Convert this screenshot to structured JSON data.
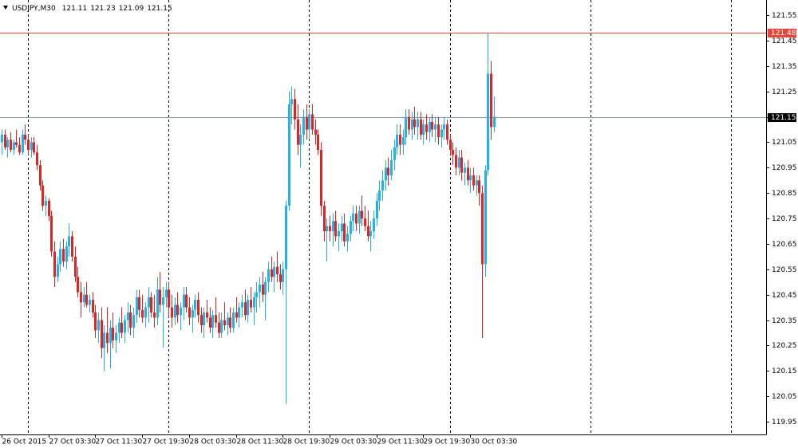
{
  "chart_data": {
    "type": "candlestick",
    "title": "USDJPY,M30",
    "last_bar": [
      121.11,
      121.23,
      121.09,
      121.15
    ],
    "up_color": "#1eb4ea",
    "down_color": "#e52222",
    "categories": [
      "26 Oct 2015",
      null,
      null,
      null,
      null,
      null,
      null,
      null,
      null,
      null,
      null,
      null,
      null,
      null,
      null,
      null,
      "27 Oct 03:30",
      null,
      null,
      null,
      null,
      null,
      null,
      null,
      null,
      null,
      null,
      null,
      null,
      null,
      null,
      null,
      "27 Oct 11:30",
      null,
      null,
      null,
      null,
      null,
      null,
      null,
      null,
      null,
      null,
      null,
      null,
      null,
      null,
      null,
      "27 Oct 19:30",
      null,
      null,
      null,
      null,
      null,
      null,
      null,
      null,
      null,
      null,
      null,
      null,
      null,
      null,
      null,
      "28 Oct 03:30",
      null,
      null,
      null,
      null,
      null,
      null,
      null,
      null,
      null,
      null,
      null,
      null,
      null,
      null,
      null,
      "28 Oct 11:30",
      null,
      null,
      null,
      null,
      null,
      null,
      null,
      null,
      null,
      null,
      null,
      null,
      null,
      null,
      null,
      "28 Oct 19:30",
      null,
      null,
      null,
      null,
      null,
      null,
      null,
      null,
      null,
      null,
      null,
      null,
      null,
      null,
      null,
      "29 Oct 03:30",
      null,
      null,
      null,
      null,
      null,
      null,
      null,
      null,
      null,
      null,
      null,
      null,
      null,
      null,
      null,
      "29 Oct 11:30",
      null,
      null,
      null,
      null,
      null,
      null,
      null,
      null,
      null,
      null,
      null,
      null,
      null,
      null,
      null,
      "29 Oct 19:30",
      null,
      null,
      null,
      null,
      null,
      null,
      null,
      null,
      null,
      null,
      null,
      null,
      null,
      null,
      null,
      "30 Oct 03:30",
      null,
      null,
      null,
      null,
      null,
      null,
      null,
      null
    ],
    "open": [
      121.05,
      121.08,
      121.03,
      121.06,
      121.02,
      121.05,
      121.04,
      121.01,
      121.08,
      121.06,
      121.02,
      121.05,
      121.01,
      120.96,
      120.88,
      120.8,
      120.82,
      120.76,
      120.62,
      120.52,
      120.57,
      120.63,
      120.58,
      120.64,
      120.68,
      120.6,
      120.52,
      120.46,
      120.42,
      120.45,
      120.41,
      120.43,
      120.38,
      120.31,
      120.35,
      120.24,
      120.3,
      120.26,
      120.32,
      120.27,
      120.3,
      120.34,
      120.3,
      120.35,
      120.38,
      120.32,
      120.37,
      120.44,
      120.39,
      120.36,
      120.4,
      120.44,
      120.38,
      120.36,
      120.47,
      120.41,
      120.44,
      120.47,
      120.4,
      120.36,
      120.41,
      120.37,
      120.4,
      120.45,
      120.4,
      120.36,
      120.39,
      120.43,
      120.37,
      120.33,
      120.38,
      120.36,
      120.32,
      120.37,
      120.34,
      120.3,
      120.35,
      120.33,
      120.36,
      120.32,
      120.38,
      120.36,
      120.4,
      120.42,
      120.37,
      120.43,
      120.4,
      120.44,
      120.46,
      120.49,
      120.45,
      120.5,
      120.55,
      120.52,
      120.56,
      120.53,
      120.5,
      120.55,
      120.8,
      121.2,
      121.22,
      121.14,
      121.04,
      121.08,
      121.15,
      121.1,
      121.16,
      121.1,
      121.08,
      121.02,
      120.8,
      120.7,
      120.72,
      120.7,
      120.74,
      120.68,
      120.7,
      120.73,
      120.66,
      120.69,
      120.74,
      120.77,
      120.73,
      120.78,
      120.75,
      120.72,
      120.68,
      120.7,
      120.75,
      120.82,
      120.86,
      120.9,
      120.95,
      120.92,
      120.98,
      121.03,
      121.08,
      121.04,
      121.07,
      121.15,
      121.1,
      121.14,
      121.11,
      121.14,
      121.08,
      121.12,
      121.09,
      121.13,
      121.1,
      121.12,
      121.07,
      121.1,
      121.12,
      121.06,
      121.02,
      121.0,
      120.95,
      120.99,
      120.93,
      120.95,
      120.9,
      120.92,
      120.88,
      120.9,
      120.85,
      120.57,
      120.94,
      121.32,
      121.11
    ],
    "high": [
      121.1,
      121.1,
      121.07,
      121.09,
      121.06,
      121.1,
      121.07,
      121.1,
      121.12,
      121.08,
      121.07,
      121.07,
      121.04,
      120.98,
      120.9,
      120.84,
      120.83,
      120.78,
      120.66,
      120.6,
      120.66,
      120.67,
      120.66,
      120.73,
      120.7,
      120.64,
      120.56,
      120.5,
      120.48,
      120.5,
      120.45,
      120.46,
      120.41,
      120.38,
      120.4,
      120.33,
      120.4,
      120.35,
      120.38,
      120.33,
      120.36,
      120.4,
      120.37,
      120.42,
      120.41,
      120.4,
      120.47,
      120.47,
      120.45,
      120.42,
      120.48,
      120.46,
      120.45,
      120.52,
      120.54,
      120.48,
      120.5,
      120.5,
      120.45,
      120.44,
      120.46,
      120.42,
      120.48,
      120.48,
      120.44,
      120.41,
      120.45,
      120.46,
      120.4,
      120.4,
      120.43,
      120.4,
      120.39,
      120.44,
      120.38,
      120.38,
      120.42,
      120.38,
      120.4,
      120.4,
      120.44,
      120.42,
      120.45,
      120.47,
      120.45,
      120.48,
      120.46,
      120.5,
      120.52,
      120.54,
      120.52,
      120.58,
      120.6,
      120.58,
      120.62,
      120.57,
      120.58,
      120.82,
      121.25,
      121.27,
      121.26,
      121.2,
      121.12,
      121.18,
      121.2,
      121.18,
      121.2,
      121.14,
      121.1,
      121.05,
      120.82,
      120.75,
      120.76,
      120.77,
      120.78,
      120.73,
      120.76,
      120.77,
      120.72,
      120.76,
      120.8,
      120.8,
      120.8,
      120.84,
      120.8,
      120.78,
      120.74,
      120.78,
      120.85,
      120.9,
      120.94,
      120.98,
      120.99,
      121.02,
      121.06,
      121.12,
      121.12,
      121.1,
      121.18,
      121.18,
      121.17,
      121.19,
      121.17,
      121.17,
      121.14,
      121.16,
      121.15,
      121.16,
      121.15,
      121.15,
      121.12,
      121.15,
      121.14,
      121.08,
      121.05,
      121.03,
      121.02,
      121.02,
      120.97,
      120.98,
      120.95,
      120.95,
      120.92,
      120.92,
      120.88,
      120.96,
      121.48,
      121.37,
      121.23
    ],
    "low": [
      121.0,
      121.02,
      120.99,
      121.01,
      121.0,
      121.03,
      121.0,
      121.0,
      121.04,
      121.0,
      120.99,
      121.0,
      120.94,
      120.86,
      120.78,
      120.76,
      120.74,
      120.6,
      120.48,
      120.5,
      120.54,
      120.56,
      120.55,
      120.6,
      120.58,
      120.5,
      120.44,
      120.36,
      120.4,
      120.4,
      120.38,
      120.36,
      120.28,
      120.26,
      120.2,
      120.15,
      120.22,
      120.16,
      120.24,
      120.22,
      120.26,
      120.28,
      120.26,
      120.3,
      120.29,
      120.28,
      120.34,
      120.36,
      120.34,
      120.32,
      120.34,
      120.36,
      120.32,
      120.33,
      120.38,
      120.24,
      120.4,
      120.36,
      120.32,
      120.33,
      120.34,
      120.31,
      120.35,
      120.38,
      120.33,
      120.3,
      120.36,
      120.34,
      120.3,
      120.28,
      120.34,
      120.3,
      120.28,
      120.32,
      120.28,
      120.28,
      120.31,
      120.29,
      120.3,
      120.3,
      120.34,
      120.32,
      120.36,
      120.35,
      120.34,
      120.38,
      120.33,
      120.38,
      120.4,
      120.42,
      120.35,
      120.46,
      120.5,
      120.46,
      120.5,
      120.47,
      120.45,
      120.02,
      120.78,
      121.12,
      121.1,
      121.0,
      120.95,
      121.04,
      121.06,
      121.06,
      121.08,
      121.04,
      121.0,
      120.76,
      120.66,
      120.58,
      120.66,
      120.64,
      120.66,
      120.62,
      120.66,
      120.64,
      120.62,
      120.66,
      120.7,
      120.7,
      120.69,
      120.72,
      120.7,
      120.66,
      120.62,
      120.67,
      120.72,
      120.78,
      120.82,
      120.86,
      120.88,
      120.9,
      120.94,
      121.0,
      121.0,
      121.0,
      121.04,
      121.08,
      121.06,
      121.08,
      121.06,
      121.06,
      121.04,
      121.06,
      121.05,
      121.07,
      121.05,
      121.04,
      121.03,
      121.06,
      121.04,
      121.0,
      120.96,
      120.92,
      120.92,
      120.9,
      120.88,
      120.88,
      120.85,
      120.86,
      120.84,
      120.8,
      120.28,
      120.52,
      120.92,
      121.06,
      121.09
    ],
    "close": [
      121.08,
      121.03,
      121.06,
      121.02,
      121.05,
      121.04,
      121.01,
      121.08,
      121.06,
      121.02,
      121.05,
      121.01,
      120.96,
      120.88,
      120.8,
      120.82,
      120.76,
      120.62,
      120.52,
      120.57,
      120.63,
      120.58,
      120.64,
      120.68,
      120.6,
      120.52,
      120.46,
      120.42,
      120.45,
      120.41,
      120.43,
      120.38,
      120.31,
      120.35,
      120.24,
      120.3,
      120.26,
      120.32,
      120.27,
      120.3,
      120.34,
      120.3,
      120.35,
      120.38,
      120.32,
      120.37,
      120.44,
      120.39,
      120.36,
      120.4,
      120.44,
      120.38,
      120.36,
      120.47,
      120.41,
      120.44,
      120.47,
      120.4,
      120.36,
      120.41,
      120.37,
      120.4,
      120.45,
      120.4,
      120.36,
      120.39,
      120.43,
      120.37,
      120.33,
      120.38,
      120.36,
      120.32,
      120.37,
      120.34,
      120.3,
      120.35,
      120.33,
      120.36,
      120.32,
      120.38,
      120.36,
      120.4,
      120.42,
      120.37,
      120.43,
      120.4,
      120.44,
      120.46,
      120.49,
      120.45,
      120.5,
      120.55,
      120.52,
      120.56,
      120.53,
      120.5,
      120.55,
      120.8,
      121.2,
      121.22,
      121.14,
      121.04,
      121.08,
      121.15,
      121.1,
      121.16,
      121.1,
      121.08,
      121.02,
      120.8,
      120.7,
      120.72,
      120.7,
      120.74,
      120.68,
      120.7,
      120.73,
      120.66,
      120.69,
      120.74,
      120.77,
      120.73,
      120.78,
      120.75,
      120.72,
      120.68,
      120.7,
      120.75,
      120.82,
      120.86,
      120.9,
      120.95,
      120.92,
      120.98,
      121.03,
      121.08,
      121.04,
      121.07,
      121.15,
      121.1,
      121.14,
      121.11,
      121.14,
      121.08,
      121.12,
      121.09,
      121.13,
      121.1,
      121.12,
      121.07,
      121.1,
      121.12,
      121.06,
      121.02,
      121.0,
      120.95,
      120.99,
      120.93,
      120.95,
      120.9,
      120.92,
      120.88,
      120.9,
      120.85,
      120.57,
      120.94,
      121.32,
      121.11,
      121.15
    ],
    "ylim": [
      119.9,
      121.61
    ],
    "yticks": [
      119.95,
      120.05,
      120.15,
      120.25,
      120.35,
      120.45,
      120.55,
      120.65,
      120.75,
      120.85,
      120.95,
      121.05,
      121.15,
      121.25,
      121.35,
      121.45,
      121.55
    ],
    "price_lines": [
      {
        "value": 121.48,
        "color": "#e8463a"
      },
      {
        "value": 121.15,
        "color": "#8296ad"
      }
    ]
  }
}
